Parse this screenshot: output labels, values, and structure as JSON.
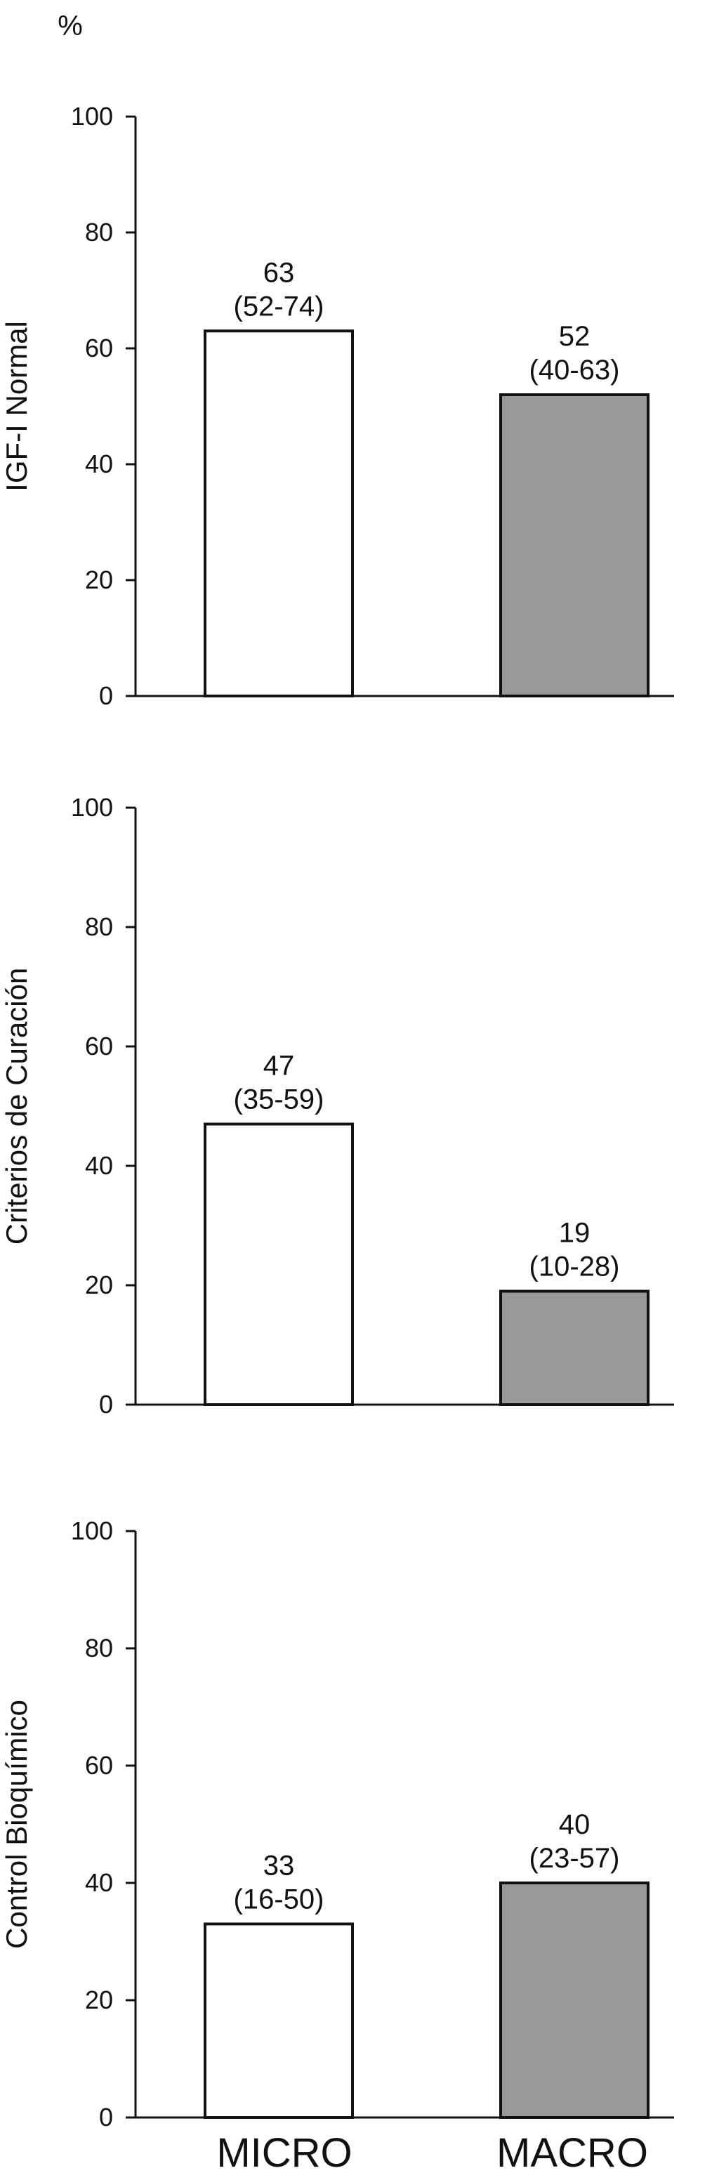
{
  "top_label": "%",
  "chart_data": [
    {
      "type": "bar",
      "categories": [
        "MICRO",
        "MACRO"
      ],
      "values": [
        63,
        52
      ],
      "value_labels": [
        "63",
        "52"
      ],
      "interval_labels": [
        "(52-74)",
        "(40-63)"
      ],
      "ylabel": "IGF-I Normal",
      "ylim": [
        0,
        100
      ],
      "yticks": [
        "0",
        "20",
        "40",
        "60",
        "80",
        "100"
      ],
      "bar_colors": [
        "#ffffff",
        "#999999"
      ]
    },
    {
      "type": "bar",
      "categories": [
        "MICRO",
        "MACRO"
      ],
      "values": [
        47,
        19
      ],
      "value_labels": [
        "47",
        "19"
      ],
      "interval_labels": [
        "(35-59)",
        "(10-28)"
      ],
      "ylabel": "Criterios de Curación",
      "ylim": [
        0,
        100
      ],
      "yticks": [
        "0",
        "20",
        "40",
        "60",
        "80",
        "100"
      ],
      "bar_colors": [
        "#ffffff",
        "#999999"
      ]
    },
    {
      "type": "bar",
      "categories": [
        "MICRO",
        "MACRO"
      ],
      "values": [
        33,
        40
      ],
      "value_labels": [
        "33",
        "40"
      ],
      "interval_labels": [
        "(16-50)",
        "(23-57)"
      ],
      "ylabel": "Control Bioquímico",
      "ylim": [
        0,
        100
      ],
      "yticks": [
        "0",
        "20",
        "40",
        "60",
        "80",
        "100"
      ],
      "bar_colors": [
        "#ffffff",
        "#999999"
      ]
    }
  ],
  "x_categories": [
    "MICRO",
    "MACRO"
  ]
}
